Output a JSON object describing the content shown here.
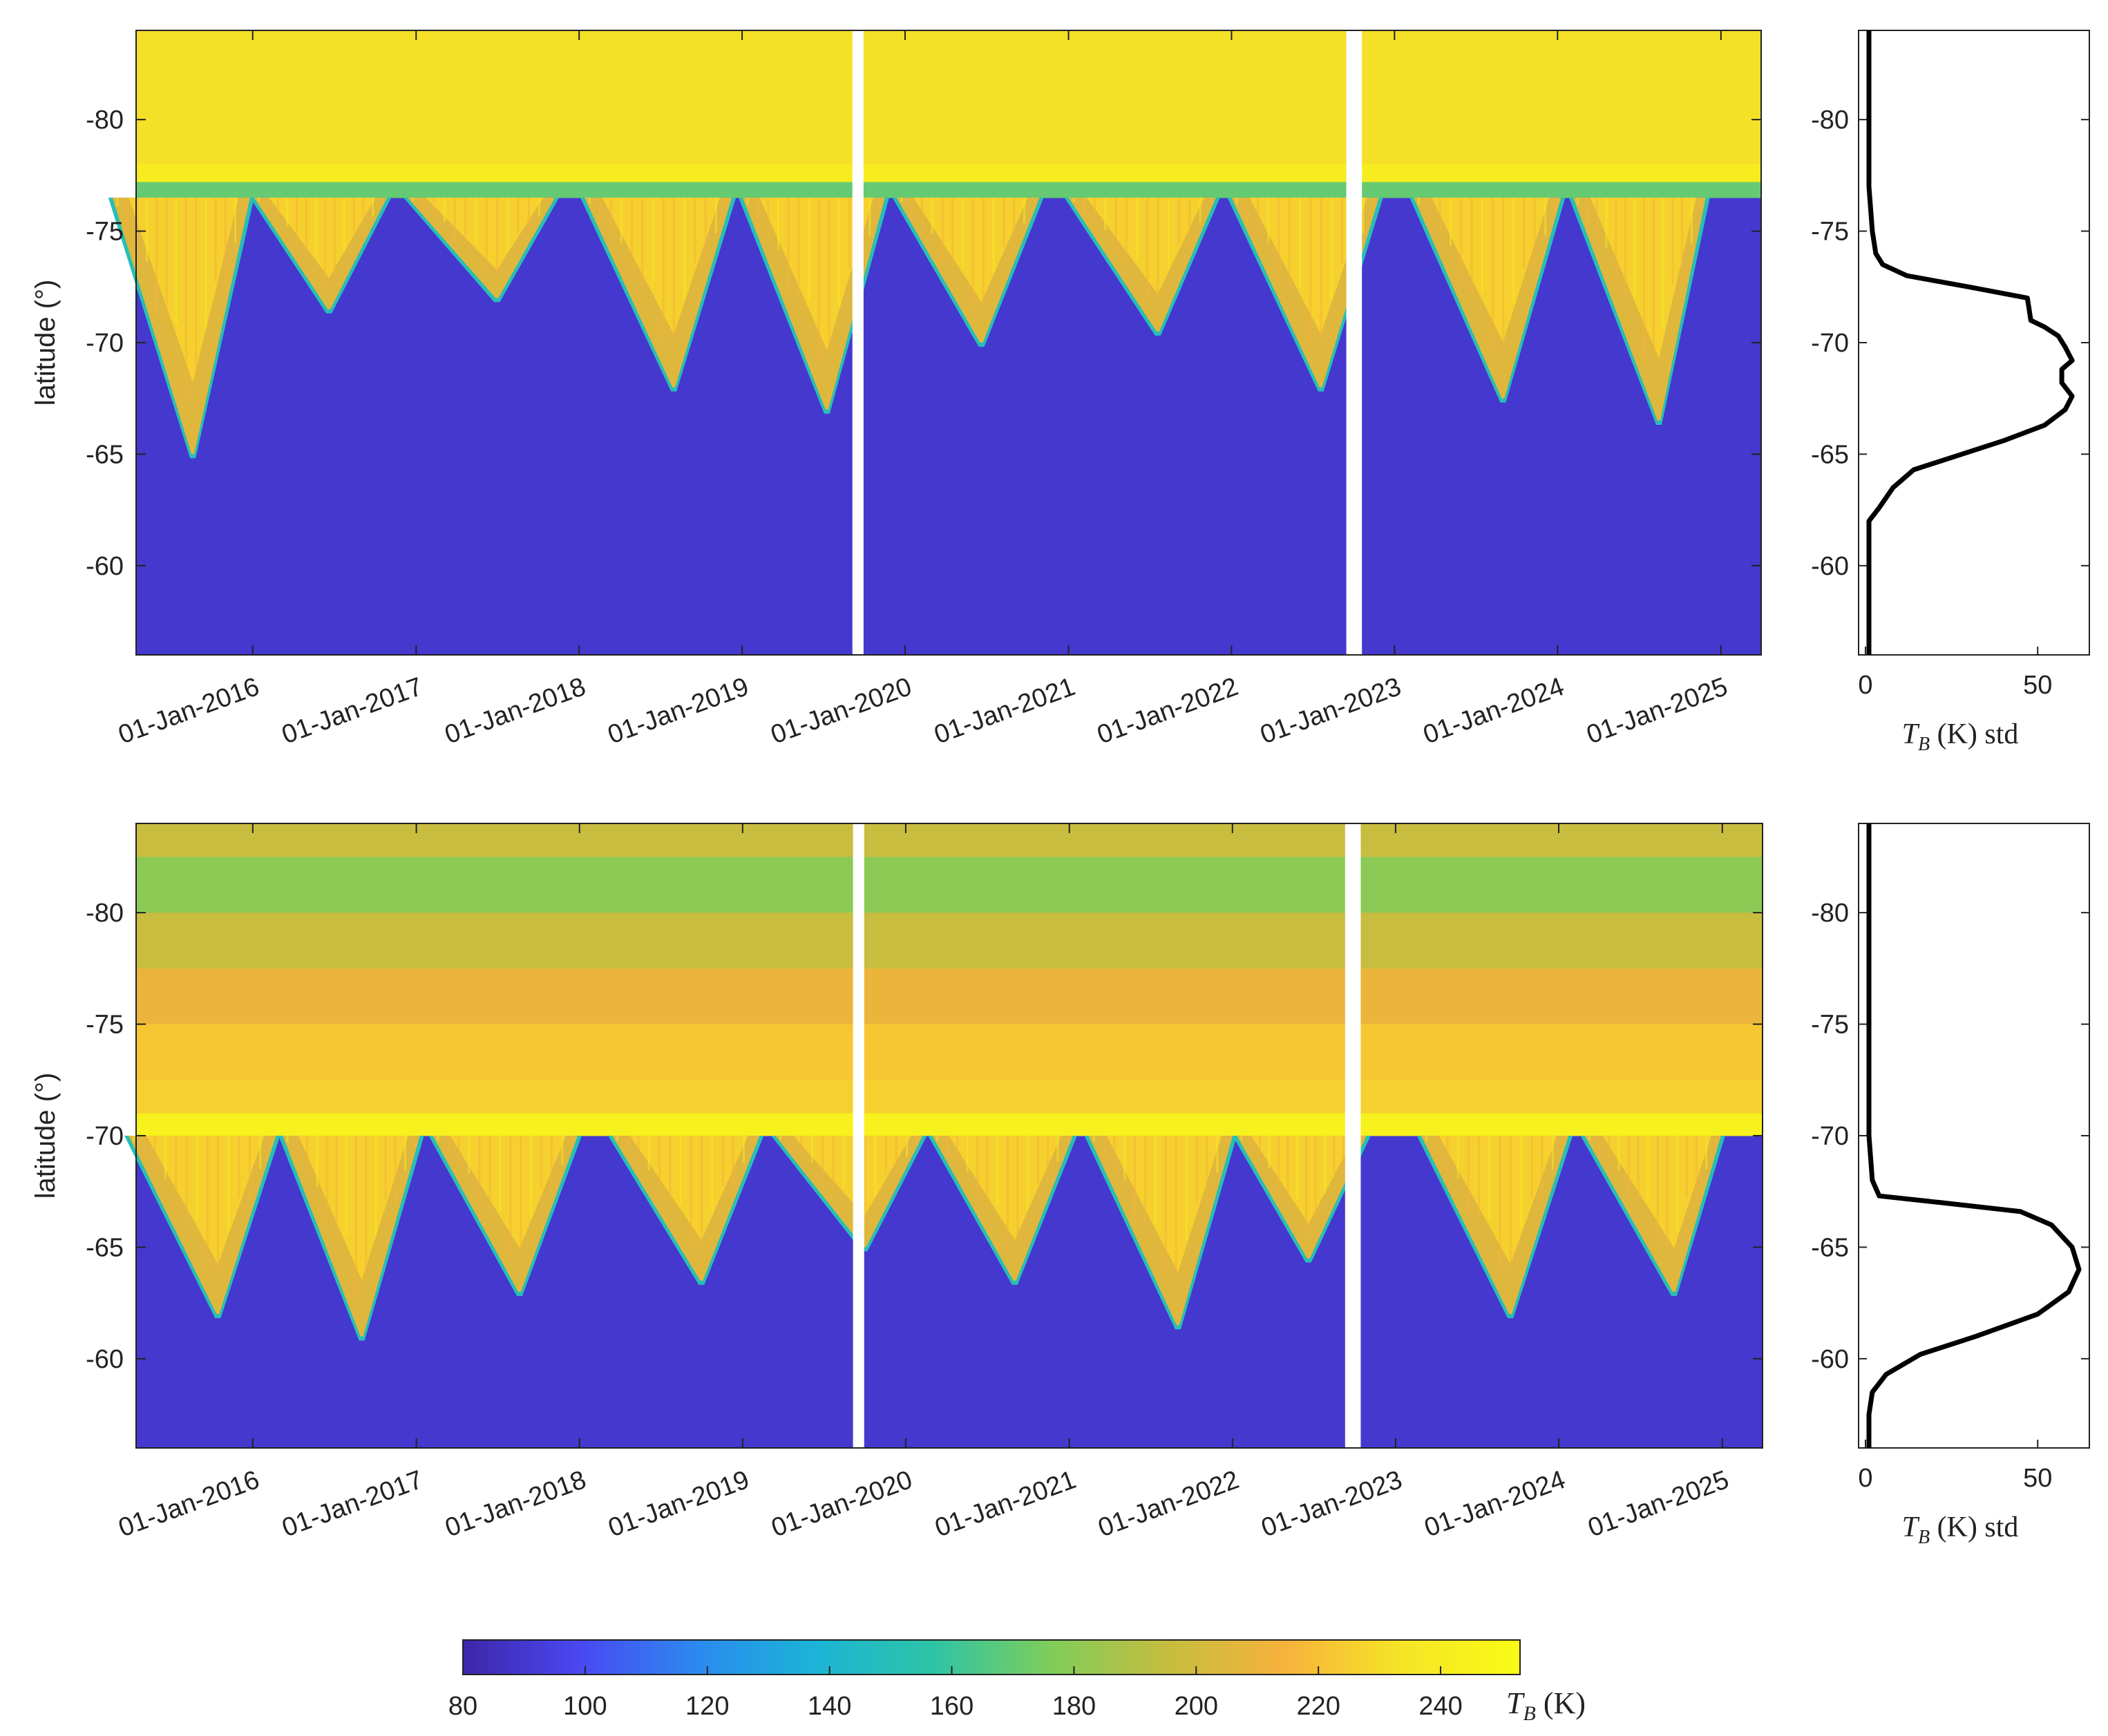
{
  "colors": {
    "colormap": [
      "#3e26a8",
      "#4a48f2",
      "#2b8af0",
      "#1bb4d6",
      "#2dc4a6",
      "#7fcd5a",
      "#c6bd3f",
      "#f7b23b",
      "#f5e526",
      "#f9fb15"
    ],
    "low_fill": "#3a28a6",
    "axis": "#222222",
    "gap": "#ffffff",
    "profile_line": "#000000"
  },
  "chart_data": [
    {
      "type": "heatmap",
      "panel": "top",
      "ylabel": "latitude (°)",
      "yticks": [
        -80,
        -75,
        -70,
        -65,
        -60
      ],
      "ylim": [
        -84,
        -56
      ],
      "xlim": [
        "2015-04-15",
        "2025-04-01"
      ],
      "xticks": [
        "01-Jan-2016",
        "01-Jan-2017",
        "01-Jan-2018",
        "01-Jan-2019",
        "01-Jan-2020",
        "01-Jan-2021",
        "01-Jan-2022",
        "01-Jan-2023",
        "01-Jan-2024",
        "01-Jan-2025"
      ],
      "value_bands": [
        {
          "lat_from": -84,
          "lat_to": -78,
          "value": 232
        },
        {
          "lat_from": -78,
          "lat_to": -77.2,
          "value": 240
        },
        {
          "lat_from": -77.2,
          "lat_to": -76.5,
          "value": 170
        }
      ],
      "low_value": 90,
      "seasonal_minima": [
        {
          "date": "2015-08-20",
          "lat": -65
        },
        {
          "date": "2016-06-20",
          "lat": -71.5
        },
        {
          "date": "2017-07-01",
          "lat": -72
        },
        {
          "date": "2018-08-01",
          "lat": -68
        },
        {
          "date": "2019-07-10",
          "lat": -67
        },
        {
          "date": "2020-06-20",
          "lat": -70
        },
        {
          "date": "2021-07-20",
          "lat": -70.5
        },
        {
          "date": "2022-07-20",
          "lat": -68
        },
        {
          "date": "2023-09-01",
          "lat": -67.5
        },
        {
          "date": "2024-08-15",
          "lat": -66.5
        }
      ],
      "data_gaps": [
        {
          "from": "2019-09-05",
          "to": "2019-09-30"
        },
        {
          "from": "2022-09-15",
          "to": "2022-10-20"
        }
      ],
      "profile": {
        "xlabel": "T_B (K) std",
        "xticks": [
          0,
          50
        ],
        "xlim": [
          -2,
          65
        ],
        "ylim": [
          -84,
          -56
        ],
        "yticks": [
          -80,
          -75,
          -70,
          -65,
          -60
        ],
        "points": [
          [
            1,
            -84
          ],
          [
            1,
            -77
          ],
          [
            2,
            -75
          ],
          [
            3,
            -74
          ],
          [
            5,
            -73.5
          ],
          [
            12,
            -73
          ],
          [
            30,
            -72.5
          ],
          [
            47,
            -72
          ],
          [
            48,
            -71
          ],
          [
            52,
            -70.7
          ],
          [
            56,
            -70.3
          ],
          [
            58,
            -69.8
          ],
          [
            60,
            -69.2
          ],
          [
            57,
            -68.8
          ],
          [
            57,
            -68.2
          ],
          [
            60,
            -67.6
          ],
          [
            58,
            -67
          ],
          [
            52,
            -66.3
          ],
          [
            40,
            -65.6
          ],
          [
            28,
            -65
          ],
          [
            14,
            -64.3
          ],
          [
            8,
            -63.5
          ],
          [
            4,
            -62.6
          ],
          [
            1,
            -62
          ],
          [
            1,
            -56
          ]
        ]
      }
    },
    {
      "type": "heatmap",
      "panel": "bottom",
      "ylabel": "latitude (°)",
      "yticks": [
        -80,
        -75,
        -70,
        -65,
        -60
      ],
      "ylim": [
        -84,
        -56
      ],
      "xlim": [
        "2015-04-15",
        "2025-04-01"
      ],
      "xticks": [
        "01-Jan-2016",
        "01-Jan-2017",
        "01-Jan-2018",
        "01-Jan-2019",
        "01-Jan-2020",
        "01-Jan-2021",
        "01-Jan-2022",
        "01-Jan-2023",
        "01-Jan-2024",
        "01-Jan-2025"
      ],
      "value_bands": [
        {
          "lat_from": -84,
          "lat_to": -82.5,
          "value": 196
        },
        {
          "lat_from": -82.5,
          "lat_to": -80,
          "value": 180
        },
        {
          "lat_from": -80,
          "lat_to": -77.5,
          "value": 196
        },
        {
          "lat_from": -77.5,
          "lat_to": -75,
          "value": 210
        },
        {
          "lat_from": -75,
          "lat_to": -72.5,
          "value": 222
        },
        {
          "lat_from": -72.5,
          "lat_to": -71,
          "value": 226
        },
        {
          "lat_from": -71,
          "lat_to": -70,
          "value": 244
        }
      ],
      "low_value": 90,
      "seasonal_minima": [
        {
          "date": "2015-10-15",
          "lat": -62
        },
        {
          "date": "2016-09-01",
          "lat": -61
        },
        {
          "date": "2017-08-20",
          "lat": -63
        },
        {
          "date": "2018-10-01",
          "lat": -63.5
        },
        {
          "date": "2019-10-01",
          "lat": -65
        },
        {
          "date": "2020-09-01",
          "lat": -63.5
        },
        {
          "date": "2021-09-01",
          "lat": -61.5
        },
        {
          "date": "2022-06-20",
          "lat": -64.5
        },
        {
          "date": "2023-09-15",
          "lat": -62
        },
        {
          "date": "2024-09-15",
          "lat": -63
        }
      ],
      "data_gaps": [
        {
          "from": "2019-09-05",
          "to": "2019-09-30"
        },
        {
          "from": "2022-09-10",
          "to": "2022-10-15"
        }
      ],
      "profile": {
        "xlabel": "T_B (K) std",
        "xticks": [
          0,
          50
        ],
        "xlim": [
          -2,
          65
        ],
        "ylim": [
          -84,
          -56
        ],
        "yticks": [
          -80,
          -75,
          -70,
          -65,
          -60
        ],
        "points": [
          [
            1,
            -84
          ],
          [
            1,
            -70
          ],
          [
            2,
            -68
          ],
          [
            4,
            -67.3
          ],
          [
            22,
            -67
          ],
          [
            45,
            -66.6
          ],
          [
            54,
            -66
          ],
          [
            60,
            -65
          ],
          [
            62,
            -64
          ],
          [
            59,
            -63
          ],
          [
            50,
            -62
          ],
          [
            32,
            -61
          ],
          [
            16,
            -60.2
          ],
          [
            6,
            -59.3
          ],
          [
            2,
            -58.5
          ],
          [
            1,
            -57.5
          ],
          [
            1,
            -56
          ]
        ]
      }
    }
  ],
  "colorbar": {
    "ticks": [
      80,
      100,
      120,
      140,
      160,
      180,
      200,
      220,
      240
    ],
    "range": [
      80,
      253
    ],
    "label_symbol": "T",
    "label_subscript": "B",
    "label_unit": "(K)"
  }
}
